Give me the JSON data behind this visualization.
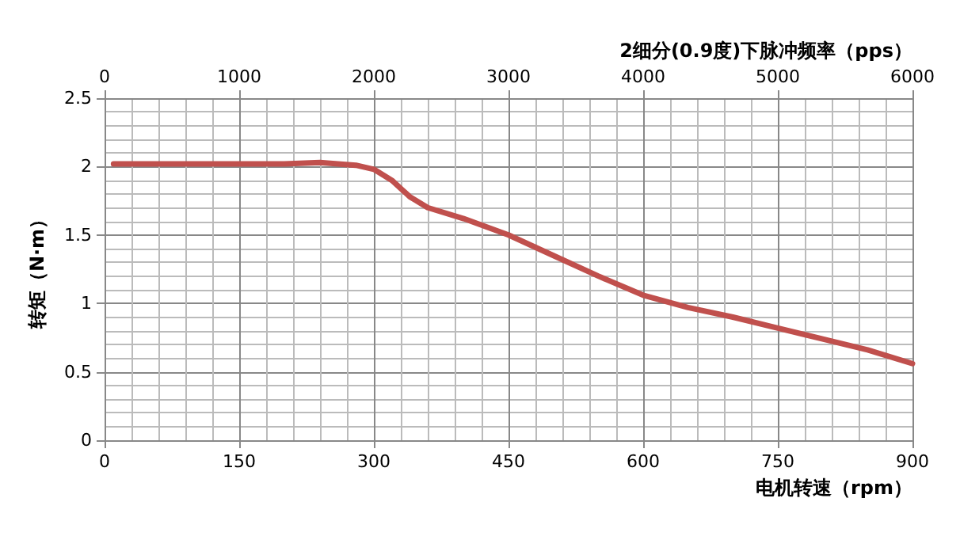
{
  "chart_data": {
    "type": "line",
    "xlabel": "电机转速（rpm）",
    "ylabel": "转矩（N·m）",
    "x2label": "2细分(0.9度)下脉冲频率（pps）",
    "x": [
      10,
      100,
      200,
      240,
      280,
      300,
      320,
      340,
      360,
      400,
      450,
      500,
      550,
      600,
      650,
      700,
      750,
      800,
      850,
      900
    ],
    "series": [
      {
        "color": "#c0504d",
        "values": [
          2.02,
          2.02,
          2.02,
          2.03,
          2.01,
          1.98,
          1.9,
          1.78,
          1.7,
          1.62,
          1.5,
          1.35,
          1.2,
          1.06,
          0.97,
          0.9,
          0.82,
          0.74,
          0.66,
          0.56
        ]
      }
    ],
    "xlim": [
      0,
      900
    ],
    "xticks": [
      0,
      150,
      300,
      450,
      600,
      750,
      900
    ],
    "x2lim": [
      0,
      6000
    ],
    "x2ticks": [
      0,
      1000,
      2000,
      3000,
      4000,
      5000,
      6000
    ],
    "ylim": [
      0,
      2.5
    ],
    "yticks": [
      0,
      0.5,
      1,
      1.5,
      2,
      2.5
    ],
    "grid": true,
    "marker": "none",
    "line_style": "solid"
  }
}
